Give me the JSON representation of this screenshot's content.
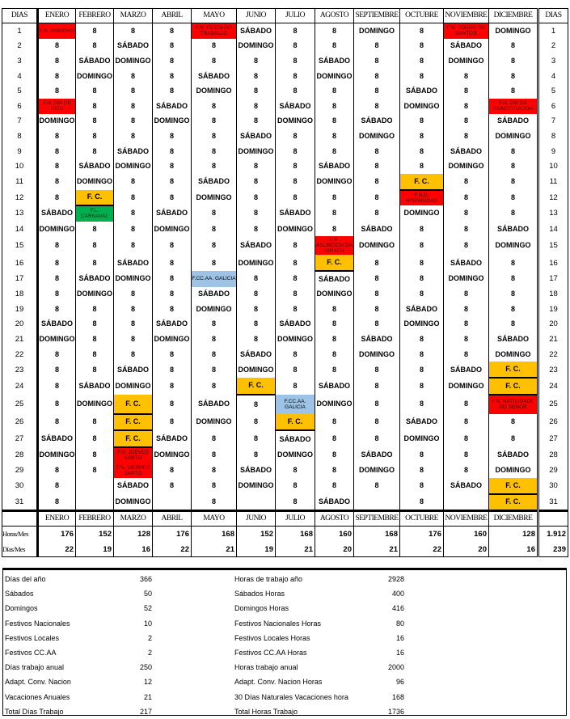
{
  "headers": {
    "dias": "DIAS",
    "months": [
      "ENERO",
      "FEBRERO",
      "MARZO",
      "ABRIL",
      "MAYO",
      "JUNIO",
      "JULIO",
      "AGOSTO",
      "SEPTIEMBRE",
      "OCTUBRE",
      "NOVIEMBRE",
      "DICIEMBRE"
    ]
  },
  "colors": {
    "national": "#ff0000",
    "company": "#ffc000",
    "local": "#00b050",
    "regional": "#9dc3e6"
  },
  "months": [
    [
      "F.N. ANINOVO",
      "8",
      "8",
      "8",
      "8",
      "F.N. DIA DE REIS",
      "DOMINGO",
      "8",
      "8",
      "8",
      "8",
      "8",
      "SÁBADO",
      "DOMINGO",
      "8",
      "8",
      "8",
      "8",
      "8",
      "SÁBADO",
      "DOMINGO",
      "8",
      "8",
      "8",
      "8",
      "8",
      "SÁBADO",
      "DOMINGO",
      "8",
      "8",
      "8"
    ],
    [
      "8",
      "8",
      "SÁBADO",
      "DOMINGO",
      "8",
      "8",
      "8",
      "8",
      "8",
      "SÁBADO",
      "DOMINGO",
      "F. C.",
      "F.L. CARNAVAL",
      "8",
      "8",
      "8",
      "SÁBADO",
      "DOMINGO",
      "8",
      "8",
      "8",
      "8",
      "8",
      "SÁBADO",
      "DOMINGO",
      "8",
      "8",
      "8",
      "8",
      "",
      ""
    ],
    [
      "8",
      "SÁBADO",
      "DOMINGO",
      "8",
      "8",
      "8",
      "8",
      "8",
      "SÁBADO",
      "DOMINGO",
      "8",
      "8",
      "8",
      "8",
      "8",
      "SÁBADO",
      "DOMINGO",
      "8",
      "8",
      "8",
      "8",
      "8",
      "SÁBADO",
      "DOMINGO",
      "F. C.",
      "F. C.",
      "F. C.",
      "F.N. JUEVES SANTO",
      "F.N. VIERNES SANTO",
      "SÁBADO",
      "DOMINGO"
    ],
    [
      "8",
      "8",
      "8",
      "8",
      "8",
      "SÁBADO",
      "DOMINGO",
      "8",
      "8",
      "8",
      "8",
      "8",
      "SÁBADO",
      "DOMINGO",
      "8",
      "8",
      "8",
      "8",
      "8",
      "SÁBADO",
      "DOMINGO",
      "8",
      "8",
      "8",
      "8",
      "8",
      "SÁBADO",
      "DOMINGO",
      "8",
      "8",
      ""
    ],
    [
      "F.N. FESTA DO TRABALLO",
      "8",
      "8",
      "SÁBADO",
      "DOMINGO",
      "8",
      "8",
      "8",
      "8",
      "8",
      "SÁBADO",
      "DOMINGO",
      "8",
      "8",
      "8",
      "8",
      "F.CC.AA. GALICIA",
      "SÁBADO",
      "DOMINGO",
      "8",
      "8",
      "8",
      "8",
      "8",
      "SÁBADO",
      "DOMINGO",
      "8",
      "8",
      "8",
      "8",
      "8"
    ],
    [
      "SÁBADO",
      "DOMINGO",
      "8",
      "8",
      "8",
      "8",
      "8",
      "SÁBADO",
      "DOMINGO",
      "8",
      "8",
      "8",
      "8",
      "8",
      "SÁBADO",
      "DOMINGO",
      "8",
      "8",
      "8",
      "8",
      "8",
      "SÁBADO",
      "DOMINGO",
      "F. C.",
      "8",
      "8",
      "8",
      "8",
      "SÁBADO",
      "DOMINGO",
      ""
    ],
    [
      "8",
      "8",
      "8",
      "8",
      "8",
      "SÁBADO",
      "DOMINGO",
      "8",
      "8",
      "8",
      "8",
      "8",
      "SÁBADO",
      "DOMINGO",
      "8",
      "8",
      "8",
      "8",
      "8",
      "SÁBADO",
      "DOMINGO",
      "8",
      "8",
      "8",
      "F.CC.AA. GALICIA",
      "F. C.",
      "SÁBADO",
      "DOMINGO",
      "8",
      "8",
      "8"
    ],
    [
      "8",
      "8",
      "SÁBADO",
      "DOMINGO",
      "8",
      "8",
      "8",
      "8",
      "8",
      "SÁBADO",
      "DOMINGO",
      "8",
      "8",
      "8",
      "F.N. ASUNCION DA VIRXEN",
      "F. C.",
      "SÁBADO",
      "DOMINGO",
      "8",
      "8",
      "8",
      "8",
      "8",
      "SÁBADO",
      "DOMINGO",
      "8",
      "8",
      "8",
      "8",
      "8",
      "SÁBADO"
    ],
    [
      "DOMINGO",
      "8",
      "8",
      "8",
      "8",
      "8",
      "SÁBADO",
      "DOMINGO",
      "8",
      "8",
      "8",
      "8",
      "8",
      "SÁBADO",
      "DOMINGO",
      "8",
      "8",
      "8",
      "8",
      "8",
      "SÁBADO",
      "DOMINGO",
      "8",
      "8",
      "8",
      "8",
      "8",
      "SÁBADO",
      "DOMINGO",
      "8",
      ""
    ],
    [
      "8",
      "8",
      "8",
      "8",
      "SÁBADO",
      "DOMINGO",
      "8",
      "8",
      "8",
      "8",
      "F. C.",
      "F.N.D. HISPANIDAD",
      "DOMINGO",
      "8",
      "8",
      "8",
      "8",
      "8",
      "SÁBADO",
      "DOMINGO",
      "8",
      "8",
      "8",
      "8",
      "8",
      "SÁBADO",
      "DOMINGO",
      "8",
      "8",
      "8",
      "8"
    ],
    [
      "F.N. TODOS OS SANTOS",
      "SÁBADO",
      "DOMINGO",
      "8",
      "8",
      "8",
      "8",
      "8",
      "SÁBADO",
      "DOMINGO",
      "8",
      "8",
      "8",
      "8",
      "8",
      "SÁBADO",
      "DOMINGO",
      "8",
      "8",
      "8",
      "8",
      "8",
      "SÁBADO",
      "DOMINGO",
      "8",
      "8",
      "8",
      "8",
      "8",
      "SÁBADO",
      ""
    ],
    [
      "DOMINGO",
      "8",
      "8",
      "8",
      "8",
      "F.N. DIA DA CONSTITUCION",
      "SÁBADO",
      "DOMINGO",
      "8",
      "8",
      "8",
      "8",
      "8",
      "SÁBADO",
      "DOMINGO",
      "8",
      "8",
      "8",
      "8",
      "8",
      "SÁBADO",
      "DOMINGO",
      "F. C.",
      "F. C.",
      "F.N. NATIVIDADE DO SEÑOR",
      "8",
      "8",
      "SÁBADO",
      "DOMINGO",
      "F. C.",
      "F. C."
    ]
  ],
  "totals": {
    "horas_label": "Horas/Mes",
    "horas": [
      "176",
      "152",
      "128",
      "176",
      "168",
      "152",
      "168",
      "160",
      "168",
      "176",
      "160",
      "128"
    ],
    "horas_total": "1.912",
    "dias_label": "Días/Mes",
    "dias": [
      "22",
      "19",
      "16",
      "22",
      "21",
      "19",
      "21",
      "20",
      "21",
      "22",
      "20",
      "16"
    ],
    "dias_total": "239"
  },
  "summary": {
    "left": [
      [
        "Días del año",
        "366"
      ],
      [
        "Sábados",
        "50"
      ],
      [
        "Domingos",
        "52"
      ],
      [
        "Festivos Nacionales",
        "10"
      ],
      [
        "Festivos Locales",
        "2"
      ],
      [
        "Festivos CC.AA",
        "2"
      ],
      [
        "Días trabajo anual",
        "250"
      ],
      [
        "Adapt. Conv. Nacion",
        "12"
      ],
      [
        "Vacaciones Anuales",
        "21"
      ],
      [
        "Total Días Trabajo",
        "217"
      ]
    ],
    "right": [
      [
        "Horas de trabajo año",
        "2928"
      ],
      [
        "Sábados Horas",
        "400"
      ],
      [
        "Domingos Horas",
        "416"
      ],
      [
        "Festivos Nacionales Horas",
        "80"
      ],
      [
        "Festivos Locales Horas",
        "16"
      ],
      [
        "Festivos CC.AA Horas",
        "16"
      ],
      [
        "Horas trabajo anual",
        "2000"
      ],
      [
        "Adapt. Conv. Nacion Horas",
        "96"
      ],
      [
        "30 Días Naturales Vacaciones hora",
        "168"
      ],
      [
        "Total Horas Trabajo",
        "1736"
      ]
    ]
  }
}
